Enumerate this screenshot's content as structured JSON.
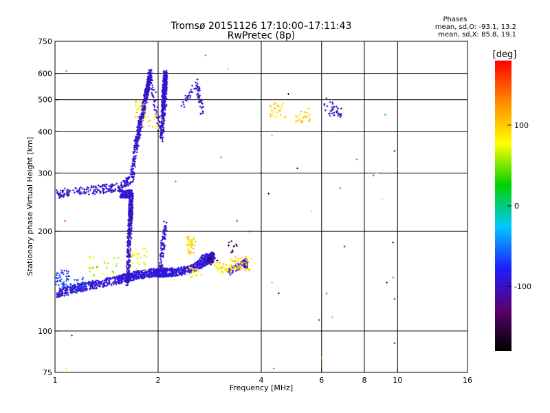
{
  "chart_data": {
    "type": "scatter",
    "title_line1": "Tromsø 20151126 17:10:00–17:11:43",
    "title_line2": "RwPretec (8p)",
    "xlabel": "Frequency [MHz]",
    "ylabel": "Stationary phase Virtual Height [km]",
    "x_scale": "log",
    "y_scale": "log",
    "xlim": [
      1,
      16
    ],
    "ylim": [
      75,
      750
    ],
    "x_ticks": [
      1,
      2,
      4,
      6,
      8,
      10,
      16
    ],
    "y_ticks": [
      75,
      100,
      200,
      300,
      400,
      500,
      600,
      750
    ],
    "grid_x": [
      2,
      4,
      6,
      8,
      10
    ],
    "grid_y": [
      100,
      200,
      300,
      400,
      500,
      600
    ],
    "colorbar": {
      "unit": "[deg]",
      "range": [
        -180,
        180
      ],
      "ticks": [
        100,
        0,
        -100
      ],
      "colors": [
        "#000000",
        "#5a0070",
        "#1e1eff",
        "#00c8ff",
        "#00d200",
        "#ffff00",
        "#ff8c00",
        "#ff0000"
      ]
    },
    "stats": {
      "heading": "Phases",
      "o_line": "mean, sd,O: -93.1, 13.2",
      "x_line": "mean, sd,X:  85.8, 19.1"
    },
    "series": [
      {
        "kind": "segments",
        "points": [
          [
            1.02,
            130,
            140,
            -95
          ],
          [
            1.2,
            136,
            150,
            -92
          ],
          [
            1.5,
            142,
            160,
            -93
          ],
          [
            1.7,
            147,
            160,
            -90
          ],
          [
            1.95,
            150,
            170,
            -92
          ],
          [
            2.1,
            150,
            160,
            -88
          ],
          [
            2.4,
            152,
            140,
            -92
          ],
          [
            2.75,
            162,
            130,
            -90
          ],
          [
            2.9,
            168,
            80,
            -95
          ],
          [
            1.63,
            140,
            200,
            -98
          ],
          [
            1.66,
            220,
            150,
            -96
          ],
          [
            1.67,
            260,
            120,
            -94
          ],
          [
            1.01,
            258,
            40,
            -98
          ],
          [
            1.1,
            263,
            40,
            -95
          ],
          [
            1.3,
            267,
            80,
            -96
          ],
          [
            1.55,
            272,
            50,
            -97
          ],
          [
            1.68,
            290,
            60,
            -95
          ],
          [
            1.72,
            360,
            100,
            -94
          ],
          [
            1.78,
            430,
            120,
            -96
          ],
          [
            1.85,
            520,
            140,
            -95
          ],
          [
            1.9,
            600,
            60,
            -97
          ],
          [
            2.05,
            380,
            50,
            -96
          ],
          [
            2.07,
            450,
            100,
            -95
          ],
          [
            2.08,
            520,
            120,
            -94
          ],
          [
            2.1,
            600,
            80,
            -95
          ],
          [
            2.04,
            150,
            40,
            -96
          ],
          [
            2.06,
            180,
            50,
            -95
          ],
          [
            2.35,
            480,
            30,
            -90
          ],
          [
            2.6,
            560,
            40,
            -95
          ],
          [
            3.2,
            150,
            40,
            -90
          ],
          [
            3.6,
            160,
            60,
            -85
          ]
        ]
      },
      {
        "kind": "clusters",
        "points": [
          [
            1.05,
            144,
            40,
            -70,
            0.05,
            0.06
          ],
          [
            1.15,
            138,
            30,
            -65,
            0.06,
            0.05
          ],
          [
            1.4,
            158,
            25,
            60,
            0.1,
            0.07
          ],
          [
            1.75,
            165,
            25,
            80,
            0.06,
            0.08
          ],
          [
            1.78,
            470,
            20,
            95,
            0.04,
            0.06
          ],
          [
            1.9,
            430,
            15,
            90,
            0.06,
            0.06
          ],
          [
            2.5,
            182,
            40,
            95,
            0.03,
            0.06
          ],
          [
            2.55,
            150,
            20,
            85,
            0.05,
            0.04
          ],
          [
            3.1,
            155,
            40,
            90,
            0.06,
            0.04
          ],
          [
            3.5,
            160,
            50,
            100,
            0.07,
            0.05
          ],
          [
            4.5,
            465,
            25,
            95,
            0.06,
            0.05
          ],
          [
            5.3,
            445,
            25,
            100,
            0.05,
            0.04
          ],
          [
            6.6,
            460,
            25,
            -110,
            0.04,
            0.04
          ],
          [
            6.3,
            470,
            10,
            -95,
            0.03,
            0.05
          ],
          [
            3.3,
            180,
            10,
            -150,
            0.03,
            0.04
          ],
          [
            2.9,
            165,
            10,
            -150,
            0.04,
            0.04
          ]
        ]
      },
      {
        "kind": "scatter",
        "points": [
          [
            2.25,
            283
          ],
          [
            3.05,
            335
          ],
          [
            3.4,
            215
          ],
          [
            3.7,
            200
          ],
          [
            4.2,
            260
          ],
          [
            4.3,
            390
          ],
          [
            4.5,
            130
          ],
          [
            5.1,
            310
          ],
          [
            5.6,
            230
          ],
          [
            6.5,
            400
          ],
          [
            6.8,
            270
          ],
          [
            7.0,
            180
          ],
          [
            7.6,
            330
          ],
          [
            8.5,
            295
          ],
          [
            9.2,
            450
          ],
          [
            9.8,
            350
          ],
          [
            9.7,
            185
          ],
          [
            9.7,
            145
          ],
          [
            9.8,
            125
          ],
          [
            9.0,
            250
          ],
          [
            1.08,
            610
          ],
          [
            1.07,
            215
          ],
          [
            1.12,
            97
          ],
          [
            3.2,
            620
          ],
          [
            2.75,
            680
          ],
          [
            4.8,
            520
          ],
          [
            5.5,
            470
          ],
          [
            6.2,
            505
          ],
          [
            5.9,
            108
          ],
          [
            6.2,
            130
          ],
          [
            6.45,
            110
          ],
          [
            4.35,
            77
          ],
          [
            4.3,
            140
          ],
          [
            1.08,
            77
          ],
          [
            6.0,
            83
          ],
          [
            9.8,
            92
          ],
          [
            8.7,
            300
          ],
          [
            9.3,
            140
          ]
        ]
      }
    ]
  }
}
